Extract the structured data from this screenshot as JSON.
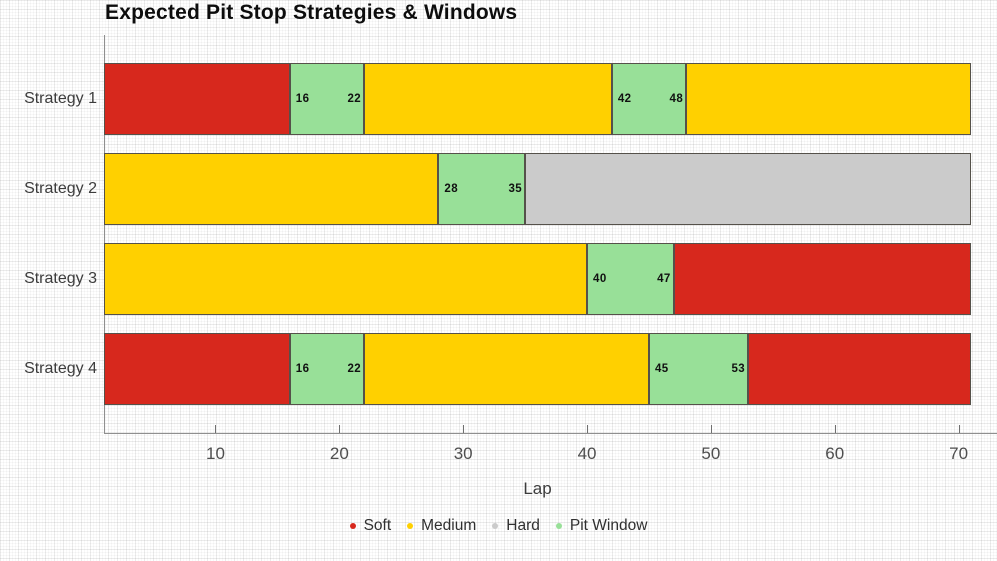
{
  "chart_data": {
    "type": "bar",
    "orientation": "horizontal-stacked",
    "title": "Expected Pit Stop Strategies & Windows",
    "xlabel": "Lap",
    "x_ticks": [
      10,
      20,
      30,
      40,
      50,
      60,
      70
    ],
    "x_range": [
      1,
      71
    ],
    "grid": true,
    "legend_position": "bottom-center",
    "colors": {
      "Soft": "#d7281d",
      "Medium": "#ffd000",
      "Hard": "#cbcbcb",
      "Pit Window": "#98e098",
      "segment_border": "#55514a",
      "axis": "#8f8f8f"
    },
    "legend": [
      {
        "label": "Soft",
        "color": "#d7281d"
      },
      {
        "label": "Medium",
        "color": "#ffd000"
      },
      {
        "label": "Hard",
        "color": "#cbcbcb"
      },
      {
        "label": "Pit Window",
        "color": "#98e098"
      }
    ],
    "rows": [
      {
        "label": "Strategy 1",
        "segments": [
          {
            "type": "Soft",
            "from": 1,
            "to": 16
          },
          {
            "type": "Pit Window",
            "from": 16,
            "to": 22,
            "show_labels": true
          },
          {
            "type": "Medium",
            "from": 22,
            "to": 42
          },
          {
            "type": "Pit Window",
            "from": 42,
            "to": 48,
            "show_labels": true
          },
          {
            "type": "Medium",
            "from": 48,
            "to": 71
          }
        ]
      },
      {
        "label": "Strategy 2",
        "segments": [
          {
            "type": "Medium",
            "from": 1,
            "to": 28
          },
          {
            "type": "Pit Window",
            "from": 28,
            "to": 35,
            "show_labels": true
          },
          {
            "type": "Hard",
            "from": 35,
            "to": 71
          }
        ]
      },
      {
        "label": "Strategy 3",
        "segments": [
          {
            "type": "Medium",
            "from": 1,
            "to": 40
          },
          {
            "type": "Pit Window",
            "from": 40,
            "to": 47,
            "show_labels": true
          },
          {
            "type": "Soft",
            "from": 47,
            "to": 71
          }
        ]
      },
      {
        "label": "Strategy 4",
        "segments": [
          {
            "type": "Soft",
            "from": 1,
            "to": 16
          },
          {
            "type": "Pit Window",
            "from": 16,
            "to": 22,
            "show_labels": true
          },
          {
            "type": "Medium",
            "from": 22,
            "to": 45
          },
          {
            "type": "Pit Window",
            "from": 45,
            "to": 53,
            "show_labels": true
          },
          {
            "type": "Soft",
            "from": 53,
            "to": 71
          }
        ]
      }
    ]
  }
}
